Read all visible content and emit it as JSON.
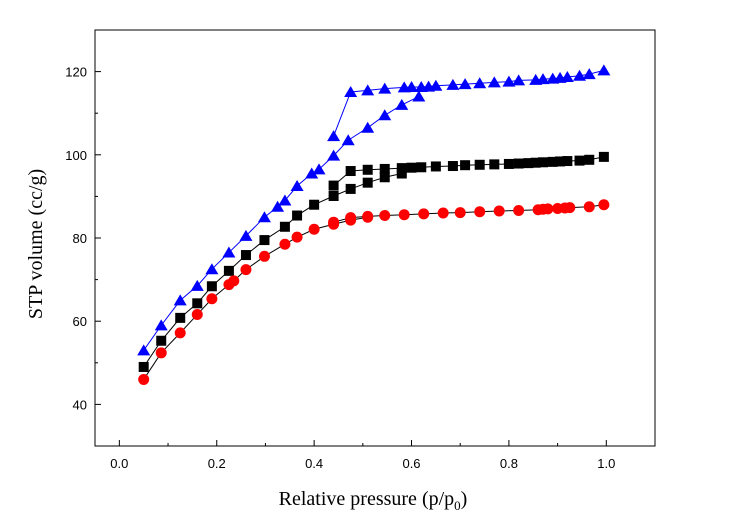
{
  "chart_data": {
    "type": "scatter",
    "title": "",
    "xlabel": "Relative pressure (p/p",
    "xlabel_sub": "0",
    "xlabel_end": ")",
    "ylabel": "STP volume (cc/g)",
    "xlim": [
      -0.05,
      1.1
    ],
    "ylim": [
      30,
      130
    ],
    "xticks": [
      "0.0",
      "0.2",
      "0.4",
      "0.6",
      "0.8",
      "1.0"
    ],
    "yticks": [
      "40",
      "60",
      "80",
      "100",
      "120"
    ],
    "grid": false,
    "legend": "none",
    "series": [
      {
        "color": "#0000ff",
        "marker": "triangle",
        "adsorption": {
          "x": [
            0.05,
            0.086,
            0.125,
            0.16,
            0.19,
            0.225,
            0.26,
            0.298,
            0.325,
            0.34,
            0.365,
            0.395,
            0.41,
            0.44,
            0.47
          ],
          "y": [
            53,
            59,
            65,
            68.5,
            72.5,
            76.5,
            80.5,
            85,
            87.5,
            89,
            92.5,
            95.5,
            96.5,
            99.8,
            103.5
          ]
        },
        "desorption": {
          "x": [
            0.995,
            0.965,
            0.945,
            0.92,
            0.905,
            0.89,
            0.87,
            0.855,
            0.82,
            0.8,
            0.77,
            0.74,
            0.71,
            0.685,
            0.65,
            0.635,
            0.62,
            0.6,
            0.585,
            0.545,
            0.51,
            0.475,
            0.44
          ],
          "y": [
            120.3,
            119.4,
            119,
            118.7,
            118.5,
            118.3,
            118.2,
            118,
            117.9,
            117.6,
            117.4,
            117.2,
            117,
            116.8,
            116.6,
            116.4,
            116.3,
            116.3,
            116.2,
            115.9,
            115.5,
            115.1,
            104.5
          ]
        },
        "extra": {
          "x": [
            0.51,
            0.545,
            0.58,
            0.615
          ],
          "y": [
            106.5,
            109.5,
            112,
            114
          ]
        }
      },
      {
        "color": "#000000",
        "marker": "square",
        "adsorption": {
          "x": [
            0.05,
            0.086,
            0.125,
            0.16,
            0.19,
            0.225,
            0.26,
            0.298,
            0.34,
            0.365,
            0.4,
            0.44,
            0.475,
            0.51,
            0.545,
            0.58
          ],
          "y": [
            49,
            55.3,
            60.8,
            64.3,
            68.4,
            72.1,
            75.9,
            79.5,
            82.7,
            85.4,
            88,
            90.1,
            91.8,
            93.3,
            94.6,
            95.5
          ]
        },
        "desorption": {
          "x": [
            0.995,
            0.965,
            0.945,
            0.92,
            0.905,
            0.89,
            0.87,
            0.855,
            0.84,
            0.82,
            0.8,
            0.77,
            0.74,
            0.71,
            0.685,
            0.65,
            0.62,
            0.6,
            0.58,
            0.545,
            0.51,
            0.475,
            0.44
          ],
          "y": [
            99.5,
            98.8,
            98.6,
            98.5,
            98.4,
            98.3,
            98.2,
            98.1,
            98,
            97.9,
            97.8,
            97.7,
            97.6,
            97.5,
            97.3,
            97.2,
            97,
            96.9,
            96.8,
            96.6,
            96.4,
            96.1,
            92.6
          ]
        }
      },
      {
        "color": "#ff0000",
        "marker": "circle",
        "adsorption": {
          "x": [
            0.05,
            0.086,
            0.125,
            0.16,
            0.19,
            0.225,
            0.235,
            0.26,
            0.298,
            0.34,
            0.365,
            0.4,
            0.44,
            0.475,
            0.51
          ],
          "y": [
            46,
            52.4,
            57.2,
            61.6,
            65.4,
            68.8,
            69.7,
            72.4,
            75.6,
            78.5,
            80.2,
            82.1,
            83.3,
            84.3,
            85
          ]
        },
        "desorption": {
          "x": [
            0.995,
            0.965,
            0.925,
            0.915,
            0.9,
            0.88,
            0.87,
            0.86,
            0.82,
            0.78,
            0.74,
            0.7,
            0.665,
            0.625,
            0.585,
            0.545,
            0.51,
            0.475,
            0.44
          ],
          "y": [
            88,
            87.5,
            87.3,
            87.2,
            87.1,
            87,
            86.9,
            86.8,
            86.6,
            86.5,
            86.3,
            86.1,
            86,
            85.8,
            85.6,
            85.4,
            85.2,
            84.9,
            83.8
          ]
        }
      }
    ]
  }
}
